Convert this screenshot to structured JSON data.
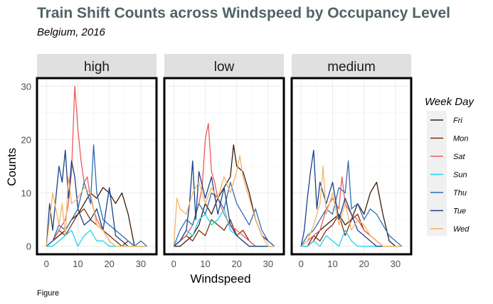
{
  "title": "Train Shift Counts across Windspeed by Occupancy Level",
  "subtitle": "Belgium, 2016",
  "caption": "Figure",
  "chart_data": {
    "type": "line",
    "xlabel": "Windspeed",
    "ylabel": "Counts",
    "xlim": [
      -3,
      35
    ],
    "ylim": [
      -1.5,
      31.5
    ],
    "x_ticks": [
      0,
      10,
      20,
      30
    ],
    "y_ticks": [
      0,
      10,
      20,
      30
    ],
    "legend_title": "Week Day",
    "legend_position": "right",
    "grid": true,
    "series_colors": {
      "Fri": "#3b1c0c",
      "Mon": "#7a2e06",
      "Sat": "#ee5a5a",
      "Sun": "#22d3ee",
      "Thu": "#2f6db3",
      "Tue": "#17418a",
      "Wed": "#f4b466"
    },
    "series_order": [
      "Fri",
      "Mon",
      "Sat",
      "Sun",
      "Thu",
      "Tue",
      "Wed"
    ],
    "panels": [
      {
        "label": "high",
        "series": [
          {
            "name": "Fri",
            "x": [
              0,
              2,
              4,
              6,
              8,
              10,
              12,
              14,
              16,
              18,
              20,
              22,
              24,
              26,
              28,
              30,
              32
            ],
            "y": [
              0,
              1,
              2,
              3,
              5,
              6,
              8,
              10,
              9,
              11,
              10,
              8,
              10,
              6,
              0,
              0,
              0
            ]
          },
          {
            "name": "Mon",
            "x": [
              0,
              2,
              4,
              6,
              8,
              10,
              12,
              14,
              16,
              18,
              20,
              22,
              24,
              26,
              28,
              30,
              32
            ],
            "y": [
              0,
              1,
              3,
              2,
              4,
              6,
              7,
              5,
              4,
              3,
              2,
              1,
              0,
              1,
              0,
              0,
              0
            ]
          },
          {
            "name": "Sat",
            "x": [
              0,
              2,
              4,
              6,
              7,
              8,
              9,
              10,
              11,
              12,
              13,
              14,
              16,
              18,
              20,
              22,
              24,
              26,
              28,
              30,
              32
            ],
            "y": [
              0,
              1,
              3,
              5,
              8,
              14,
              30,
              22,
              16,
              12,
              13,
              9,
              5,
              3,
              1,
              0,
              0,
              0,
              0,
              0,
              0
            ]
          },
          {
            "name": "Sun",
            "x": [
              0,
              2,
              4,
              6,
              8,
              10,
              12,
              14,
              16,
              18,
              20,
              22,
              24,
              26,
              28,
              30,
              32
            ],
            "y": [
              0,
              0,
              1,
              2,
              3,
              0,
              2,
              3,
              1,
              1,
              0,
              0,
              0,
              0,
              0,
              0,
              0
            ]
          },
          {
            "name": "Thu",
            "x": [
              0,
              2,
              4,
              6,
              8,
              10,
              12,
              14,
              15,
              16,
              18,
              20,
              22,
              24,
              26,
              28,
              30,
              32
            ],
            "y": [
              0,
              1,
              4,
              3,
              5,
              7,
              12,
              8,
              19,
              10,
              5,
              4,
              3,
              2,
              1,
              0,
              1,
              0
            ]
          },
          {
            "name": "Tue",
            "x": [
              0,
              1,
              2,
              3,
              4,
              5,
              6,
              7,
              8,
              9,
              10,
              12,
              14,
              16,
              18,
              20,
              22,
              24,
              26,
              28,
              30,
              32
            ],
            "y": [
              0,
              8,
              3,
              9,
              15,
              12,
              18,
              9,
              16,
              13,
              7,
              4,
              5,
              7,
              3,
              11,
              2,
              1,
              0,
              0,
              0,
              0
            ]
          },
          {
            "name": "Wed",
            "x": [
              0,
              1,
              2,
              3,
              4,
              5,
              6,
              7,
              8,
              10,
              12,
              14,
              16,
              18,
              20,
              22,
              24,
              26,
              28,
              30,
              32
            ],
            "y": [
              0,
              5,
              10,
              7,
              4,
              8,
              2,
              13,
              8,
              9,
              11,
              10,
              4,
              3,
              1,
              0,
              0,
              0,
              0,
              0,
              0
            ]
          }
        ]
      },
      {
        "label": "low",
        "series": [
          {
            "name": "Fri",
            "x": [
              0,
              2,
              4,
              6,
              8,
              10,
              12,
              14,
              16,
              18,
              19,
              20,
              22,
              24,
              26,
              28,
              30,
              32
            ],
            "y": [
              0,
              0,
              1,
              2,
              4,
              8,
              6,
              9,
              11,
              13,
              19,
              15,
              14,
              10,
              5,
              2,
              1,
              0
            ]
          },
          {
            "name": "Mon",
            "x": [
              0,
              2,
              4,
              6,
              8,
              10,
              12,
              14,
              16,
              18,
              20,
              22,
              24,
              26,
              28,
              30,
              32
            ],
            "y": [
              0,
              1,
              2,
              1,
              3,
              2,
              5,
              4,
              3,
              5,
              2,
              3,
              1,
              0,
              0,
              0,
              0
            ]
          },
          {
            "name": "Sat",
            "x": [
              0,
              2,
              4,
              6,
              8,
              9,
              10,
              11,
              12,
              13,
              14,
              16,
              18,
              20,
              22,
              24,
              26,
              28,
              30,
              32
            ],
            "y": [
              0,
              1,
              2,
              4,
              8,
              11,
              20,
              23,
              14,
              12,
              9,
              6,
              4,
              3,
              2,
              1,
              0,
              0,
              0,
              0
            ]
          },
          {
            "name": "Sun",
            "x": [
              0,
              2,
              4,
              6,
              8,
              10,
              12,
              14,
              16,
              18,
              20,
              22,
              24,
              26,
              28,
              30,
              32
            ],
            "y": [
              0,
              1,
              3,
              2,
              5,
              6,
              4,
              5,
              7,
              3,
              2,
              1,
              0,
              0,
              0,
              0,
              0
            ]
          },
          {
            "name": "Thu",
            "x": [
              0,
              2,
              4,
              6,
              8,
              10,
              12,
              14,
              16,
              18,
              20,
              22,
              24,
              26,
              28,
              30,
              32
            ],
            "y": [
              0,
              3,
              5,
              4,
              8,
              6,
              10,
              9,
              7,
              12,
              8,
              6,
              4,
              7,
              3,
              1,
              0
            ]
          },
          {
            "name": "Tue",
            "x": [
              0,
              2,
              4,
              5,
              6,
              7,
              8,
              10,
              12,
              14,
              16,
              18,
              20,
              22,
              24,
              26,
              28,
              30,
              32
            ],
            "y": [
              0,
              1,
              3,
              8,
              16,
              5,
              14,
              9,
              13,
              6,
              11,
              4,
              2,
              1,
              0,
              0,
              0,
              0,
              0
            ]
          },
          {
            "name": "Wed",
            "x": [
              0,
              1,
              2,
              4,
              6,
              8,
              10,
              12,
              14,
              16,
              18,
              20,
              21,
              22,
              24,
              26,
              28,
              30,
              32
            ],
            "y": [
              0,
              9,
              7,
              6,
              10,
              12,
              8,
              11,
              9,
              13,
              10,
              14,
              17,
              13,
              9,
              5,
              2,
              0,
              0
            ]
          }
        ]
      },
      {
        "label": "medium",
        "series": [
          {
            "name": "Fri",
            "x": [
              0,
              2,
              4,
              6,
              8,
              10,
              12,
              14,
              16,
              18,
              20,
              22,
              24,
              26,
              28,
              30,
              32
            ],
            "y": [
              0,
              0,
              1,
              3,
              4,
              5,
              6,
              4,
              5,
              8,
              6,
              10,
              12,
              6,
              1,
              0,
              0
            ]
          },
          {
            "name": "Mon",
            "x": [
              0,
              2,
              4,
              6,
              8,
              10,
              12,
              14,
              16,
              18,
              20,
              22,
              24,
              26,
              28,
              30,
              32
            ],
            "y": [
              0,
              0,
              2,
              1,
              3,
              4,
              6,
              2,
              5,
              6,
              3,
              2,
              1,
              0,
              0,
              0,
              0
            ]
          },
          {
            "name": "Sat",
            "x": [
              0,
              2,
              4,
              6,
              8,
              10,
              12,
              13,
              14,
              16,
              18,
              20,
              22,
              24,
              26,
              28,
              30,
              32
            ],
            "y": [
              0,
              1,
              2,
              3,
              7,
              9,
              7,
              13,
              8,
              6,
              5,
              3,
              2,
              1,
              0,
              0,
              0,
              0
            ]
          },
          {
            "name": "Sun",
            "x": [
              0,
              2,
              4,
              6,
              8,
              10,
              12,
              14,
              16,
              18,
              20,
              22,
              24,
              26,
              28,
              30,
              32
            ],
            "y": [
              0,
              0,
              1,
              0,
              2,
              1,
              0,
              3,
              1,
              0,
              0,
              0,
              0,
              0,
              0,
              0,
              0
            ]
          },
          {
            "name": "Thu",
            "x": [
              0,
              2,
              4,
              6,
              8,
              10,
              12,
              14,
              15,
              16,
              18,
              20,
              22,
              24,
              26,
              28,
              30,
              32
            ],
            "y": [
              0,
              2,
              3,
              5,
              7,
              6,
              11,
              10,
              16,
              7,
              8,
              5,
              7,
              6,
              4,
              2,
              1,
              0
            ]
          },
          {
            "name": "Tue",
            "x": [
              0,
              1,
              2,
              3,
              4,
              5,
              6,
              8,
              10,
              12,
              14,
              16,
              18,
              20,
              22,
              24,
              26,
              28,
              30,
              32
            ],
            "y": [
              0,
              3,
              9,
              14,
              18,
              7,
              12,
              8,
              12,
              5,
              9,
              6,
              3,
              2,
              1,
              0,
              0,
              0,
              0,
              0
            ]
          },
          {
            "name": "Wed",
            "x": [
              0,
              2,
              4,
              6,
              7,
              8,
              10,
              12,
              14,
              16,
              18,
              20,
              22,
              24,
              26,
              28,
              30,
              32
            ],
            "y": [
              0,
              1,
              4,
              8,
              15,
              6,
              10,
              4,
              8,
              3,
              5,
              4,
              2,
              1,
              0,
              0,
              0,
              0
            ]
          }
        ]
      }
    ]
  }
}
